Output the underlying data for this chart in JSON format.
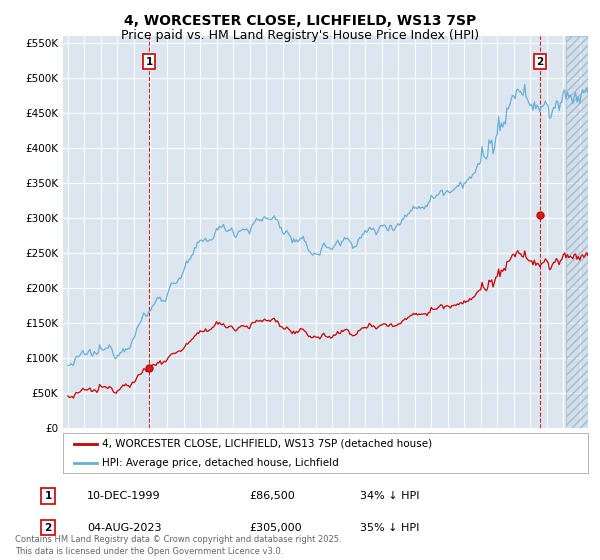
{
  "title": "4, WORCESTER CLOSE, LICHFIELD, WS13 7SP",
  "subtitle": "Price paid vs. HM Land Registry's House Price Index (HPI)",
  "ylim": [
    0,
    560000
  ],
  "yticks": [
    0,
    50000,
    100000,
    150000,
    200000,
    250000,
    300000,
    350000,
    400000,
    450000,
    500000,
    550000
  ],
  "xlim_start": 1994.7,
  "xlim_end": 2026.5,
  "background_color": "#ffffff",
  "plot_bg_color": "#dce6f1",
  "grid_color": "#ffffff",
  "hpi_color": "#6aaed6",
  "price_color": "#cc0000",
  "sale1_x": 1999.92,
  "sale1_y": 86500,
  "sale2_x": 2023.58,
  "sale2_y": 305000,
  "annotation1_label": "1",
  "annotation2_label": "2",
  "legend_line1": "4, WORCESTER CLOSE, LICHFIELD, WS13 7SP (detached house)",
  "legend_line2": "HPI: Average price, detached house, Lichfield",
  "table_row1_num": "1",
  "table_row1_date": "10-DEC-1999",
  "table_row1_price": "£86,500",
  "table_row1_hpi": "34% ↓ HPI",
  "table_row2_num": "2",
  "table_row2_date": "04-AUG-2023",
  "table_row2_price": "£305,000",
  "table_row2_hpi": "35% ↓ HPI",
  "footer": "Contains HM Land Registry data © Crown copyright and database right 2025.\nThis data is licensed under the Open Government Licence v3.0.",
  "title_fontsize": 10,
  "subtitle_fontsize": 9,
  "hatch_start": 2025.17
}
